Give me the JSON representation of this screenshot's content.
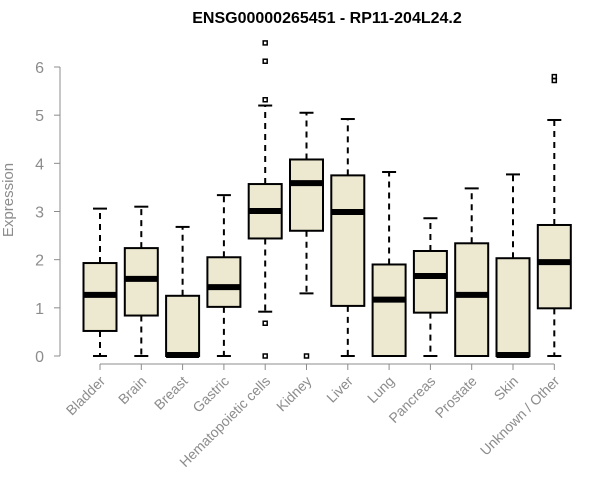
{
  "chart_data": {
    "type": "boxplot",
    "title": "ENSG00000265451 - RP11-204L24.2",
    "ylabel": "Expression",
    "xlabel": "",
    "ylim": [
      0,
      6.3
    ],
    "yticks": [
      "0",
      "1",
      "2",
      "3",
      "4",
      "5",
      "6"
    ],
    "box_color": "#ede8d0",
    "categories": [
      "Bladder",
      "Brain",
      "Breast",
      "Gastric",
      "Hematopoietic cells",
      "Kidney",
      "Liver",
      "Lung",
      "Pancreas",
      "Prostate",
      "Skin",
      "Unknown / Other"
    ],
    "boxes": [
      {
        "min": 0.0,
        "q1": 0.52,
        "median": 1.27,
        "q3": 1.93,
        "max": 3.06,
        "outliers": []
      },
      {
        "min": 0.0,
        "q1": 0.84,
        "median": 1.6,
        "q3": 2.24,
        "max": 3.1,
        "outliers": []
      },
      {
        "min": 0.0,
        "q1": 0.0,
        "median": 0.02,
        "q3": 1.25,
        "max": 2.68,
        "outliers": []
      },
      {
        "min": 0.0,
        "q1": 1.02,
        "median": 1.43,
        "q3": 2.05,
        "max": 3.34,
        "outliers": []
      },
      {
        "min": 0.92,
        "q1": 2.44,
        "median": 3.01,
        "q3": 3.57,
        "max": 5.2,
        "outliers": [
          0.0,
          0.68,
          5.32,
          6.12,
          6.5
        ]
      },
      {
        "min": 1.3,
        "q1": 2.6,
        "median": 3.59,
        "q3": 4.08,
        "max": 5.05,
        "outliers": [
          0.0
        ]
      },
      {
        "min": 0.0,
        "q1": 1.04,
        "median": 2.99,
        "q3": 3.75,
        "max": 4.92,
        "outliers": []
      },
      {
        "min": 0.0,
        "q1": 0.0,
        "median": 1.17,
        "q3": 1.9,
        "max": 3.82,
        "outliers": []
      },
      {
        "min": 0.0,
        "q1": 0.9,
        "median": 1.66,
        "q3": 2.18,
        "max": 2.86,
        "outliers": []
      },
      {
        "min": 0.0,
        "q1": 0.0,
        "median": 1.27,
        "q3": 2.34,
        "max": 3.48,
        "outliers": []
      },
      {
        "min": 0.0,
        "q1": 0.0,
        "median": 0.02,
        "q3": 2.03,
        "max": 3.77,
        "outliers": []
      },
      {
        "min": 0.0,
        "q1": 0.99,
        "median": 1.95,
        "q3": 2.72,
        "max": 4.9,
        "outliers": [
          5.72,
          5.8
        ]
      }
    ]
  }
}
